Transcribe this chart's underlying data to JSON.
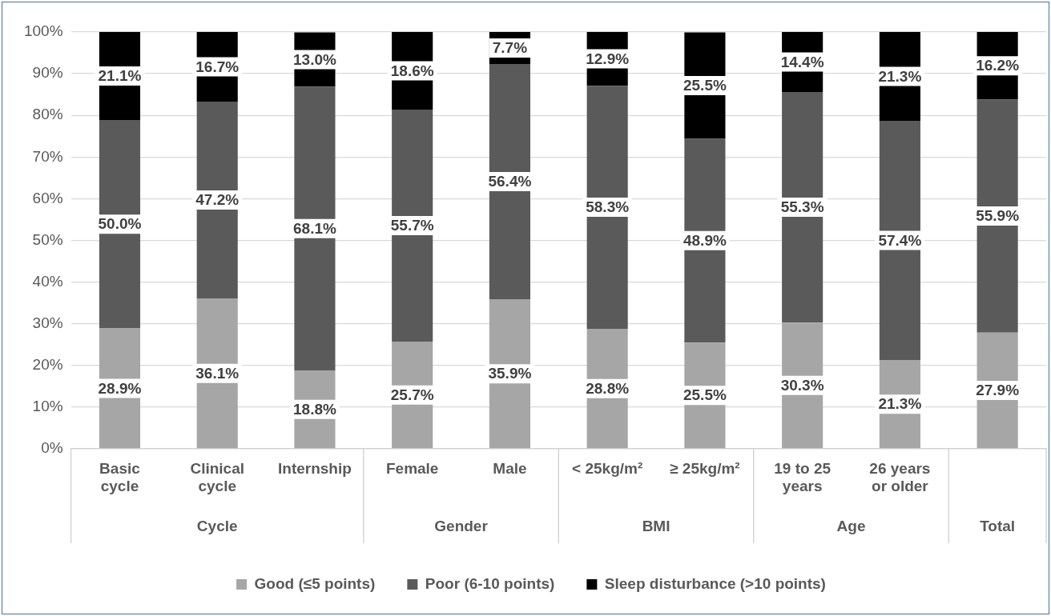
{
  "chart_data": {
    "type": "bar",
    "stacked": true,
    "categories": [
      "Basic cycle",
      "Clinical cycle",
      "Internship",
      "Female",
      "Male",
      "< 25kg/m²",
      "≥ 25kg/m²",
      "19 to 25 years",
      "26 years or older",
      null
    ],
    "series": [
      {
        "name": "Good (≤5 points)",
        "color": "#a6a6a6",
        "values": [
          28.9,
          36.1,
          18.8,
          25.7,
          35.9,
          28.8,
          25.5,
          30.3,
          21.3,
          27.9
        ]
      },
      {
        "name": "Poor (6-10 points)",
        "color": "#5a5a5a",
        "values": [
          50.0,
          47.2,
          68.1,
          55.7,
          56.4,
          58.3,
          48.9,
          55.3,
          57.4,
          55.9
        ]
      },
      {
        "name": "Sleep disturbance (>10 points)",
        "color": "#000000",
        "values": [
          21.1,
          16.7,
          13.0,
          18.6,
          7.7,
          12.9,
          25.5,
          14.4,
          21.3,
          16.2
        ]
      }
    ],
    "ylim": [
      0,
      100
    ],
    "yticks": [
      {
        "value": 0,
        "label": "0%"
      },
      {
        "value": 10,
        "label": "10%"
      },
      {
        "value": 20,
        "label": "20%"
      },
      {
        "value": 30,
        "label": "30%"
      },
      {
        "value": 40,
        "label": "40%"
      },
      {
        "value": 50,
        "label": "50%"
      },
      {
        "value": 60,
        "label": "60%"
      },
      {
        "value": 70,
        "label": "70%"
      },
      {
        "value": 80,
        "label": "80%"
      },
      {
        "value": 90,
        "label": "90%"
      },
      {
        "value": 100,
        "label": "100%"
      }
    ],
    "value_labels": [
      [
        "28.9%",
        "36.1%",
        "18.8%",
        "25.7%",
        "35.9%",
        "28.8%",
        "25.5%",
        "30.3%",
        "21.3%",
        "27.9%"
      ],
      [
        "50.0%",
        "47.2%",
        "68.1%",
        "55.7%",
        "56.4%",
        "58.3%",
        "48.9%",
        "55.3%",
        "57.4%",
        "55.9%"
      ],
      [
        "21.1%",
        "16.7%",
        "13.0%",
        "18.6%",
        "7.7%",
        "12.9%",
        "25.5%",
        "14.4%",
        "21.3%",
        "16.2%"
      ]
    ],
    "annotations": [
      "Cycle",
      "Gender",
      "BMI",
      "Age",
      "Total"
    ],
    "grid": "y",
    "legend": "bottom"
  }
}
